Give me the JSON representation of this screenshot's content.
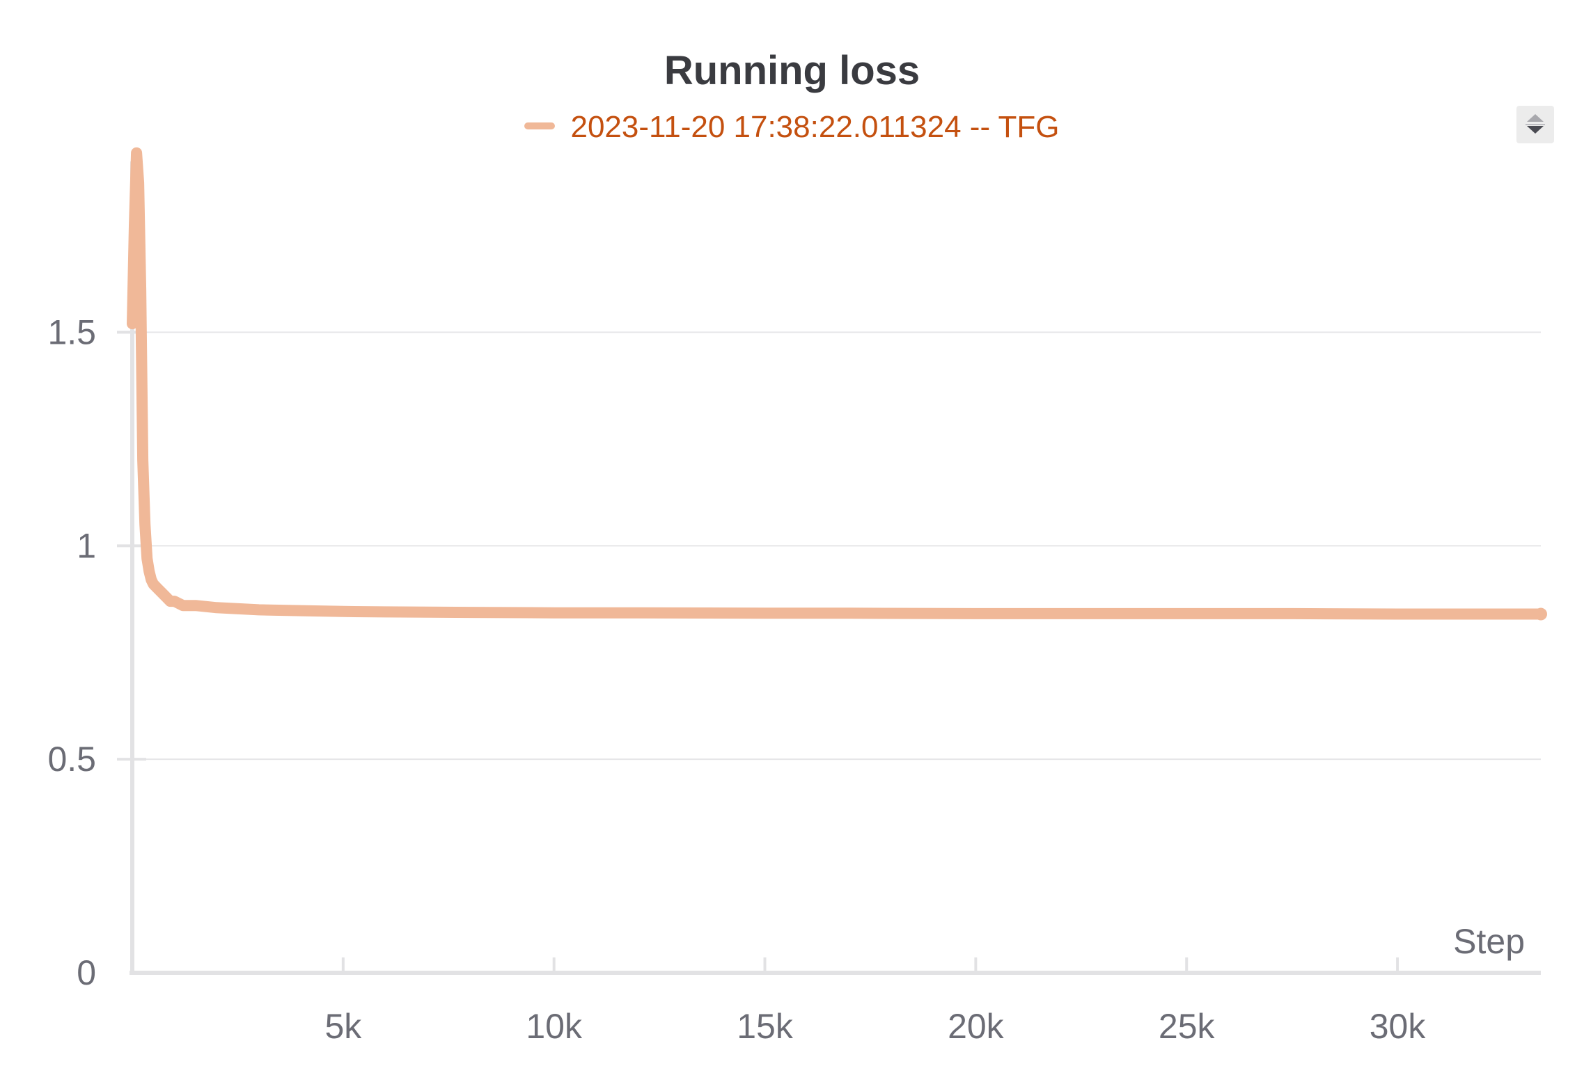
{
  "chart_data": {
    "type": "line",
    "title": "Running loss",
    "xlabel": "Step",
    "ylabel": "",
    "xlim": [
      0,
      33400
    ],
    "ylim": [
      0,
      1.9
    ],
    "x_ticks": [
      5000,
      10000,
      15000,
      20000,
      25000,
      30000
    ],
    "x_tick_labels": [
      "5k",
      "10k",
      "15k",
      "20k",
      "25k",
      "30k"
    ],
    "y_ticks": [
      0,
      0.5,
      1,
      1.5
    ],
    "y_tick_labels": [
      "0",
      "0.5",
      "1",
      "1.5"
    ],
    "grid": true,
    "legend_position": "top-center",
    "series": [
      {
        "name": "2023-11-20 17:38:22.011324 -- TFG",
        "color": "#f0b898",
        "x": [
          0,
          50,
          100,
          150,
          200,
          250,
          300,
          350,
          400,
          450,
          500,
          600,
          700,
          800,
          900,
          1000,
          1200,
          1500,
          2000,
          3000,
          4000,
          5000,
          6000,
          8000,
          10000,
          12000,
          15000,
          17000,
          20000,
          23500,
          25000,
          27500,
          30000,
          33400
        ],
        "values": [
          1.52,
          1.75,
          1.92,
          1.85,
          1.6,
          1.2,
          1.05,
          0.97,
          0.94,
          0.92,
          0.91,
          0.9,
          0.89,
          0.88,
          0.87,
          0.87,
          0.86,
          0.86,
          0.855,
          0.85,
          0.848,
          0.846,
          0.845,
          0.844,
          0.843,
          0.843,
          0.842,
          0.842,
          0.841,
          0.841,
          0.841,
          0.841,
          0.84,
          0.84
        ]
      }
    ]
  },
  "legend": {
    "label": "2023-11-20 17:38:22.011324 -- TFG",
    "swatch_color": "#f0b898"
  },
  "controls": {
    "sort_icon": "sort-arrows-icon"
  }
}
